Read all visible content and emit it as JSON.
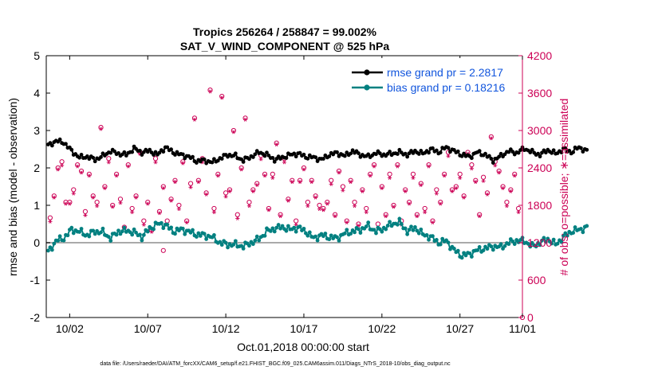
{
  "chart_data": {
    "type": "line",
    "title_line1": "Tropics 256264 / 258847 = 99.002%",
    "title_line2": "SAT_V_WIND_COMPONENT @ 525 hPa",
    "xlabel": "Oct.01,2018 00:00:00 start",
    "ylabel_left": "rmse and bias (model - observation)",
    "ylabel_right": "# of obs: o=possible; ∗=assimilated",
    "footer": "data file: /Users/raeder/DAI/ATM_forcXX/CAM6_setup/f.e21.FHIST_BGC.f09_025.CAM6assim.011/Diags_NTrS_2018-10/obs_diag_output.nc",
    "xlim": [
      0.5,
      31.0
    ],
    "ylim_left": [
      -2,
      5
    ],
    "ylim_right": [
      0,
      4200
    ],
    "x_ticks": [
      {
        "x": 2,
        "label": "10/02"
      },
      {
        "x": 7,
        "label": "10/07"
      },
      {
        "x": 12,
        "label": "10/12"
      },
      {
        "x": 17,
        "label": "10/17"
      },
      {
        "x": 22,
        "label": "10/22"
      },
      {
        "x": 27,
        "label": "10/27"
      },
      {
        "x": 31,
        "label": "11/01"
      }
    ],
    "y_ticks_left": [
      -2,
      -1,
      0,
      1,
      2,
      3,
      4,
      5
    ],
    "y_ticks_right": [
      0,
      600,
      1200,
      1800,
      2400,
      3000,
      3600,
      4200
    ],
    "colors": {
      "rmse": "#000000",
      "bias": "#008080",
      "obs": "#cc0055",
      "legend_text": "#1155dd",
      "zero_line": "#aaaaaa"
    },
    "series": [
      {
        "name": "rmse grand pr = 2.2817",
        "key": "rmse",
        "start_x": 0.625,
        "step": 0.125,
        "anchors": [
          2.6,
          2.72,
          2.68,
          2.45,
          2.28,
          2.3,
          2.22,
          2.32,
          2.45,
          2.38,
          2.35,
          2.52,
          2.41,
          2.46,
          2.35,
          2.55,
          2.42,
          2.35,
          2.3,
          2.18,
          2.2,
          2.15,
          2.25,
          2.35,
          2.32,
          2.2,
          2.3,
          2.42,
          2.35,
          2.22,
          2.28,
          2.35,
          2.38,
          2.3,
          2.28,
          2.22,
          2.35,
          2.4,
          2.32,
          2.45,
          2.35,
          2.3,
          2.4,
          2.35,
          2.38,
          2.42,
          2.35,
          2.45,
          2.38,
          2.5,
          2.42,
          2.55,
          2.45,
          2.35,
          2.3,
          2.42,
          2.35,
          2.2,
          2.32,
          2.45,
          2.4,
          2.52,
          2.42,
          2.35,
          2.48,
          2.38,
          2.5,
          2.42,
          2.55,
          2.45
        ],
        "wave_amp": 0.07,
        "values": []
      },
      {
        "name": "bias grand pr = 0.18216",
        "key": "bias",
        "start_x": 0.625,
        "step": 0.125,
        "anchors": [
          -0.25,
          0.05,
          0.12,
          0.35,
          0.3,
          0.2,
          0.3,
          0.28,
          0.12,
          0.3,
          0.32,
          0.28,
          0.15,
          0.38,
          0.5,
          0.48,
          0.3,
          0.35,
          0.3,
          0.22,
          0.2,
          0.15,
          0.0,
          -0.05,
          -0.05,
          -0.1,
          0.0,
          0.1,
          0.3,
          0.38,
          0.42,
          0.35,
          0.4,
          0.3,
          0.12,
          0.2,
          0.15,
          0.12,
          0.25,
          0.3,
          0.35,
          0.45,
          0.3,
          0.38,
          0.5,
          0.55,
          0.3,
          0.4,
          0.22,
          0.15,
          0.0,
          0.05,
          -0.2,
          -0.35,
          -0.3,
          -0.2,
          -0.15,
          -0.1,
          -0.12,
          0.0,
          0.05,
          0.05,
          -0.1,
          0.0,
          0.1,
          -0.05,
          0.15,
          0.3,
          0.35,
          0.4
        ],
        "wave_amp": 0.1,
        "values": []
      }
    ],
    "obs_possible": {
      "label": "o=possible",
      "x": [
        0.75,
        1.0,
        1.25,
        1.5,
        1.75,
        2.0,
        2.25,
        2.5,
        2.75,
        3.0,
        3.25,
        3.5,
        3.75,
        4.0,
        4.25,
        4.5,
        4.75,
        5.0,
        5.25,
        5.5,
        5.75,
        6.0,
        6.25,
        6.5,
        6.75,
        7.0,
        7.25,
        7.5,
        7.75,
        8.0,
        8.25,
        8.5,
        8.75,
        9.0,
        9.25,
        9.5,
        9.75,
        10.0,
        10.25,
        10.5,
        10.75,
        11.0,
        11.25,
        11.5,
        11.75,
        12.0,
        12.25,
        12.5,
        12.75,
        13.0,
        13.25,
        13.5,
        13.75,
        14.0,
        14.25,
        14.5,
        14.75,
        15.0,
        15.25,
        15.5,
        15.75,
        16.0,
        16.25,
        16.5,
        16.75,
        17.0,
        17.25,
        17.5,
        17.75,
        18.0,
        18.25,
        18.5,
        18.75,
        19.0,
        19.25,
        19.5,
        19.75,
        20.0,
        20.25,
        20.5,
        20.75,
        21.0,
        21.25,
        21.5,
        21.75,
        22.0,
        22.25,
        22.5,
        22.75,
        23.0,
        23.25,
        23.5,
        23.75,
        24.0,
        24.25,
        24.5,
        24.75,
        25.0,
        25.25,
        25.5,
        25.75,
        26.0,
        26.25,
        26.5,
        26.75,
        27.0,
        27.25,
        27.5,
        27.75,
        28.0,
        28.25,
        28.5,
        28.75,
        29.0,
        29.25,
        29.5,
        29.75,
        30.0,
        30.25,
        30.5,
        30.75
      ],
      "y": [
        1600,
        1950,
        2400,
        2500,
        1850,
        1850,
        2050,
        2450,
        2350,
        1700,
        2300,
        1950,
        1850,
        3050,
        2100,
        2550,
        1800,
        2300,
        1900,
        1450,
        2450,
        1750,
        1950,
        2650,
        1550,
        1850,
        1400,
        2550,
        1700,
        2100,
        1550,
        1900,
        2200,
        1800,
        2500,
        1550,
        2150,
        3200,
        2200,
        2550,
        2000,
        3650,
        1750,
        2300,
        3550,
        2000,
        2050,
        3000,
        1650,
        2400,
        3200,
        1850,
        2050,
        2150,
        2600,
        2300,
        1750,
        2300,
        2800,
        1650,
        2550,
        1900,
        2200,
        1550,
        2200,
        2400,
        1850,
        2200,
        1950,
        1800,
        1750,
        1850,
        2200,
        1650,
        2350,
        2100,
        1550,
        2200,
        1850,
        1500,
        2050,
        1750,
        2300,
        2450,
        1500,
        2100,
        1650,
        2300,
        1800,
        2450,
        1550,
        2050,
        1850,
        2300,
        1650,
        2150,
        1750,
        2450,
        1550,
        2050,
        1850,
        2300,
        2650,
        2050,
        2100,
        2300,
        1950,
        2650,
        2450,
        2200,
        1650,
        2250,
        2000,
        2900,
        2500,
        2350,
        2100,
        1850,
        2050,
        2300,
        1750
      ],
      "extra": [
        {
          "x": 31.0,
          "y": 0
        },
        {
          "x": 8.0,
          "y": 1075
        }
      ]
    },
    "obs_assimilated": {
      "label": "∗=assimilated",
      "x": [],
      "y": []
    },
    "legend_position": "top-right"
  }
}
